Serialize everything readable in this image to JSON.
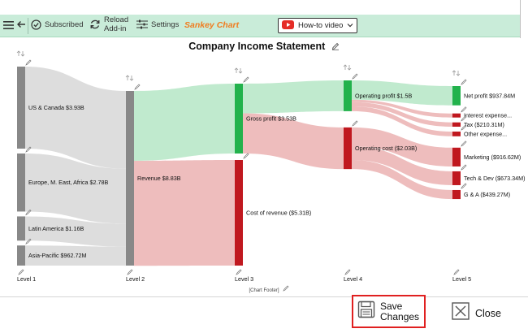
{
  "toolbar": {
    "subscribed_label": "Subscribed",
    "reload_label_line1": "Reload",
    "reload_label_line2": "Add-in",
    "settings_label": "Settings",
    "brand": "Sankey Chart",
    "howto_label": "How-to video"
  },
  "chart": {
    "title": "Company Income Statement",
    "footer": "[Chart Footer]"
  },
  "chart_data": {
    "type": "sankey",
    "title": "Company Income Statement",
    "levels": [
      "Level 1",
      "Level 2",
      "Level 3",
      "Level 4",
      "Level 5"
    ],
    "nodes": [
      {
        "id": "us",
        "level": 1,
        "label": "US & Canada $3.93B",
        "value": 3.93,
        "color": "#888888"
      },
      {
        "id": "eu",
        "level": 1,
        "label": "Europe, M. East, Africa $2.78B",
        "value": 2.78,
        "color": "#888888"
      },
      {
        "id": "la",
        "level": 1,
        "label": "Latin America $1.16B",
        "value": 1.16,
        "color": "#888888"
      },
      {
        "id": "ap",
        "level": 1,
        "label": "Asia-Pacific $962.72M",
        "value": 0.96272,
        "color": "#888888"
      },
      {
        "id": "rev",
        "level": 2,
        "label": "Revenue $8.83B",
        "value": 8.83,
        "color": "#888888"
      },
      {
        "id": "gp",
        "level": 3,
        "label": "Gross profit $3.53B",
        "value": 3.53,
        "color": "#22b24c"
      },
      {
        "id": "cor",
        "level": 3,
        "label": "Cost of revenue ($5.31B)",
        "value": 5.31,
        "color": "#c0181f"
      },
      {
        "id": "op",
        "level": 4,
        "label": "Operating profit $1.5B",
        "value": 1.5,
        "color": "#22b24c"
      },
      {
        "id": "oc",
        "level": 4,
        "label": "Operating cost ($2.03B)",
        "value": 2.03,
        "color": "#c0181f"
      },
      {
        "id": "np",
        "level": 5,
        "label": "Net profit $937.84M",
        "value": 0.93784,
        "color": "#22b24c"
      },
      {
        "id": "ie",
        "level": 5,
        "label": "Interest expense...",
        "value": 0.12,
        "color": "#c0181f"
      },
      {
        "id": "tax",
        "level": 5,
        "label": "Tax ($210.31M)",
        "value": 0.21031,
        "color": "#c0181f"
      },
      {
        "id": "oe",
        "level": 5,
        "label": "Other expense...",
        "value": 0.23,
        "color": "#c0181f"
      },
      {
        "id": "mk",
        "level": 5,
        "label": "Marketing ($916.62M)",
        "value": 0.91662,
        "color": "#c0181f"
      },
      {
        "id": "td",
        "level": 5,
        "label": "Tech & Dev ($673.34M)",
        "value": 0.67334,
        "color": "#c0181f"
      },
      {
        "id": "ga",
        "level": 5,
        "label": "G & A ($439.27M)",
        "value": 0.43927,
        "color": "#c0181f"
      }
    ],
    "links": [
      {
        "source": "us",
        "target": "rev",
        "value": 3.93,
        "color": "#d9d9d9"
      },
      {
        "source": "eu",
        "target": "rev",
        "value": 2.78,
        "color": "#d9d9d9"
      },
      {
        "source": "la",
        "target": "rev",
        "value": 1.16,
        "color": "#d9d9d9"
      },
      {
        "source": "ap",
        "target": "rev",
        "value": 0.96272,
        "color": "#d9d9d9"
      },
      {
        "source": "rev",
        "target": "gp",
        "value": 3.53,
        "color": "#b9e8c9"
      },
      {
        "source": "rev",
        "target": "cor",
        "value": 5.31,
        "color": "#ecb6b6"
      },
      {
        "source": "gp",
        "target": "op",
        "value": 1.5,
        "color": "#b9e8c9"
      },
      {
        "source": "gp",
        "target": "oc",
        "value": 2.03,
        "color": "#ecb6b6"
      },
      {
        "source": "op",
        "target": "np",
        "value": 0.93784,
        "color": "#b9e8c9"
      },
      {
        "source": "op",
        "target": "ie",
        "value": 0.12,
        "color": "#ecb6b6"
      },
      {
        "source": "op",
        "target": "tax",
        "value": 0.21031,
        "color": "#ecb6b6"
      },
      {
        "source": "op",
        "target": "oe",
        "value": 0.23,
        "color": "#ecb6b6"
      },
      {
        "source": "oc",
        "target": "mk",
        "value": 0.91662,
        "color": "#ecb6b6"
      },
      {
        "source": "oc",
        "target": "td",
        "value": 0.67334,
        "color": "#ecb6b6"
      },
      {
        "source": "oc",
        "target": "ga",
        "value": 0.43927,
        "color": "#ecb6b6"
      }
    ]
  },
  "buttons": {
    "save_line1": "Save",
    "save_line2": "Changes",
    "close": "Close"
  },
  "icons": {
    "menu": "hamburger-icon",
    "back": "back-arrow-icon",
    "subscribed": "subscribed-badge-icon",
    "reload": "reload-icon",
    "settings": "settings-sliders-icon",
    "youtube": "youtube-icon",
    "edit": "pencil-icon",
    "swap": "swap-arrows-icon",
    "save": "floppy-disk-icon",
    "close": "close-box-icon"
  }
}
